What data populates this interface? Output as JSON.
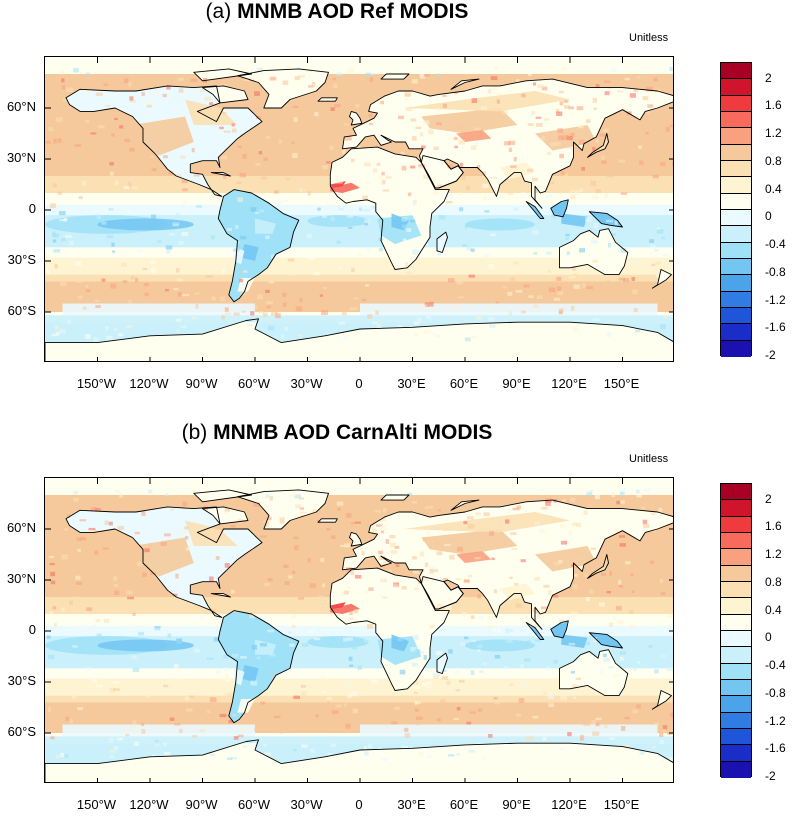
{
  "panels": [
    {
      "prefix": "(a)",
      "title": "MNMB AOD Ref MODIS",
      "units": "Unitless",
      "variant": 0
    },
    {
      "prefix": "(b)",
      "title": "MNMB AOD CarnAlti MODIS",
      "units": "Unitless",
      "variant": 1
    }
  ],
  "lat_labels": [
    "60°N",
    "30°N",
    "0",
    "30°S",
    "60°S"
  ],
  "lat_values": [
    60,
    30,
    0,
    -30,
    -60
  ],
  "lon_labels": [
    "150°W",
    "120°W",
    "90°W",
    "60°W",
    "30°W",
    "0",
    "30°E",
    "60°E",
    "90°E",
    "120°E",
    "150°E"
  ],
  "lon_values": [
    -150,
    -120,
    -90,
    -60,
    -30,
    0,
    30,
    60,
    90,
    120,
    150
  ],
  "colorbar": {
    "labels": [
      "2",
      "1.6",
      "1.2",
      "0.8",
      "0.4",
      "0",
      "-0.4",
      "-0.8",
      "-1.2",
      "-1.6",
      "-2"
    ],
    "colors": [
      "#a80024",
      "#d0142b",
      "#ef3b3e",
      "#f76a5c",
      "#f9a07f",
      "#f5c99b",
      "#fbe0b4",
      "#fff4d2",
      "#fffff0",
      "#eafaff",
      "#c9f0fb",
      "#9fe1f7",
      "#73c6f2",
      "#4ba4ea",
      "#2f7de2",
      "#1f55d8",
      "#1b2dc8",
      "#1b10b0"
    ]
  },
  "map": {
    "lon_range": [
      -180,
      180
    ],
    "lat_range": [
      -90,
      90
    ]
  }
}
